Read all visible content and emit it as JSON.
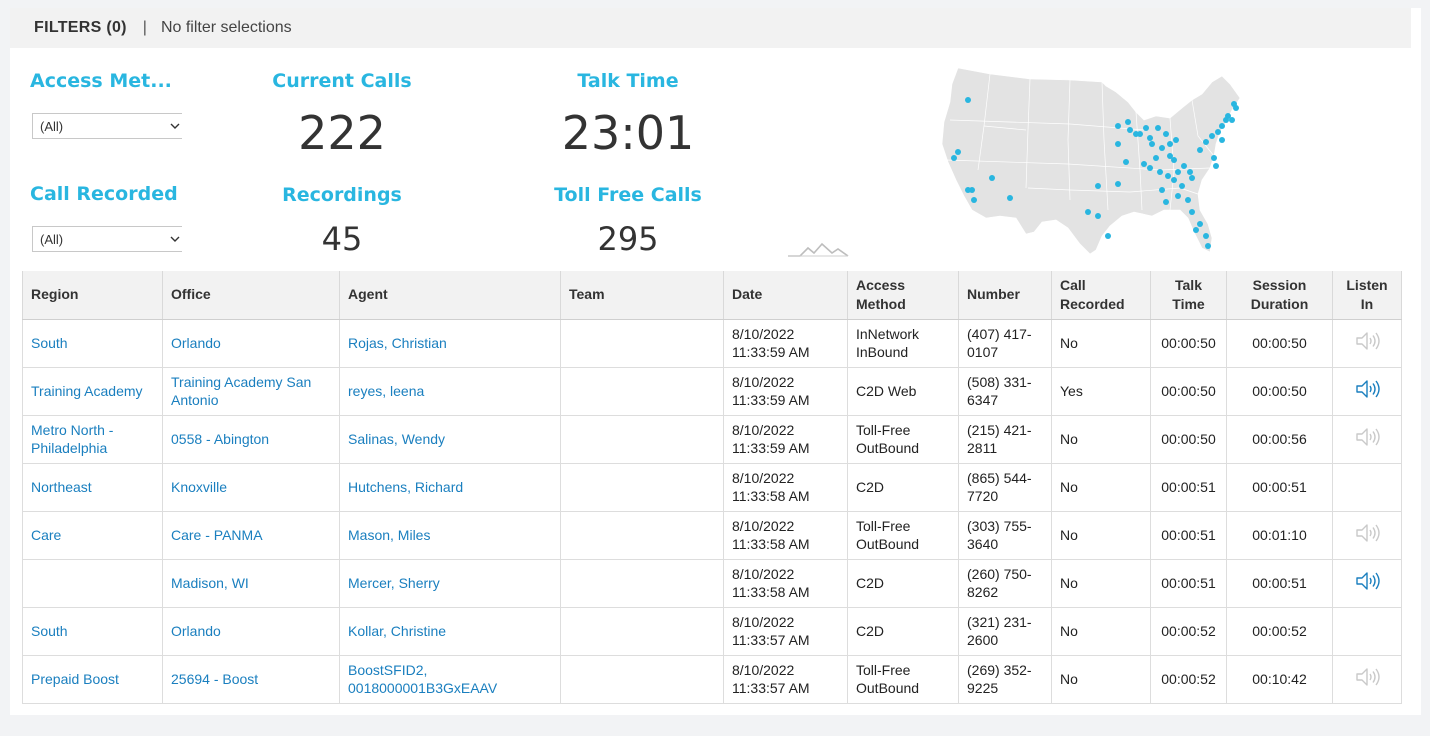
{
  "filters": {
    "title": "FILTERS (0)",
    "separator": "|",
    "status": "No filter selections"
  },
  "controls": {
    "access_method": {
      "title": "Access Met...",
      "value": "(All)"
    },
    "call_recorded": {
      "title": "Call Recorded",
      "value": "(All)"
    }
  },
  "kpis": {
    "current_calls": {
      "title": "Current Calls",
      "value": "222"
    },
    "talk_time": {
      "title": "Talk Time",
      "value": "23:01"
    },
    "recordings": {
      "title": "Recordings",
      "value": "45"
    },
    "toll_free_calls": {
      "title": "Toll Free Calls",
      "value": "295"
    }
  },
  "colors": {
    "accent": "#29b6e0",
    "link": "#1a7fbf",
    "map_land": "#e3e3e3",
    "map_point": "#29b6e0"
  },
  "table": {
    "columns": [
      "Region",
      "Office",
      "Agent",
      "Team",
      "Date",
      "Access Method",
      "Number",
      "Call Recorded",
      "Talk Time",
      "Session Duration",
      "Listen In"
    ],
    "rows": [
      {
        "region": "South",
        "office": "Orlando",
        "agent": "Rojas, Christian",
        "team": "",
        "date": "8/10/2022 11:33:59 AM",
        "access": "InNetwork InBound",
        "number": "(407) 417-0107",
        "recorded": "No",
        "talk": "00:00:50",
        "session": "00:00:50",
        "listen": "disabled"
      },
      {
        "region": "Training Academy",
        "office": "Training Academy San Antonio",
        "agent": "reyes, leena",
        "team": "",
        "date": "8/10/2022 11:33:59 AM",
        "access": "C2D Web",
        "number": "(508) 331-6347",
        "recorded": "Yes",
        "talk": "00:00:50",
        "session": "00:00:50",
        "listen": "active"
      },
      {
        "region": "Metro North - Philadelphia",
        "office": "0558 - Abington",
        "agent": "Salinas, Wendy",
        "team": "",
        "date": "8/10/2022 11:33:59 AM",
        "access": "Toll-Free OutBound",
        "number": "(215) 421-2811",
        "recorded": "No",
        "talk": "00:00:50",
        "session": "00:00:56",
        "listen": "disabled"
      },
      {
        "region": "Northeast",
        "office": "Knoxville",
        "agent": "Hutchens, Richard",
        "team": "",
        "date": "8/10/2022 11:33:58 AM",
        "access": "C2D",
        "number": "(865) 544-7720",
        "recorded": "No",
        "talk": "00:00:51",
        "session": "00:00:51",
        "listen": "none"
      },
      {
        "region": "Care",
        "office": "Care - PANMA",
        "agent": "Mason, Miles",
        "team": "",
        "date": "8/10/2022 11:33:58 AM",
        "access": "Toll-Free OutBound",
        "number": "(303) 755-3640",
        "recorded": "No",
        "talk": "00:00:51",
        "session": "00:01:10",
        "listen": "disabled"
      },
      {
        "region": "",
        "office": "Madison, WI",
        "agent": "Mercer, Sherry",
        "team": "",
        "date": "8/10/2022 11:33:58 AM",
        "access": "C2D",
        "number": "(260) 750-8262",
        "recorded": "No",
        "talk": "00:00:51",
        "session": "00:00:51",
        "listen": "active"
      },
      {
        "region": "South",
        "office": "Orlando",
        "agent": "Kollar, Christine",
        "team": "",
        "date": "8/10/2022 11:33:57 AM",
        "access": "C2D",
        "number": "(321) 231-2600",
        "recorded": "No",
        "talk": "00:00:52",
        "session": "00:00:52",
        "listen": "none"
      },
      {
        "region": "Prepaid Boost",
        "office": "25694 - Boost",
        "agent": "BoostSFID2, 0018000001B3GxEAAV",
        "team": "",
        "date": "8/10/2022 11:33:57 AM",
        "access": "Toll-Free OutBound",
        "number": "(269) 352-9225",
        "recorded": "No",
        "talk": "00:00:52",
        "session": "00:10:42",
        "listen": "disabled"
      }
    ]
  }
}
